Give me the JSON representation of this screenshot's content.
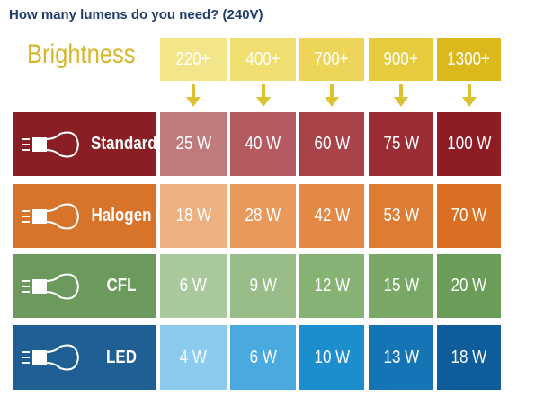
{
  "header": {
    "title": "How many lumens do you need? (240V)",
    "label": "Brightness",
    "columns": [
      "220+",
      "400+",
      "700+",
      "900+",
      "1300+"
    ]
  },
  "table": {
    "rows": [
      {
        "label": "Standard",
        "cells": [
          "25 W",
          "40 W",
          "60 W",
          "75 W",
          "100 W"
        ]
      },
      {
        "label": "Halogen",
        "cells": [
          "18 W",
          "28 W",
          "42 W",
          "53 W",
          "70 W"
        ]
      },
      {
        "label": "CFL",
        "cells": [
          "6 W",
          "9 W",
          "12 W",
          "15 W",
          "20 W"
        ]
      },
      {
        "label": "LED",
        "cells": [
          "4 W",
          "6 W",
          "10 W",
          "13 W",
          "18 W"
        ]
      }
    ]
  }
}
